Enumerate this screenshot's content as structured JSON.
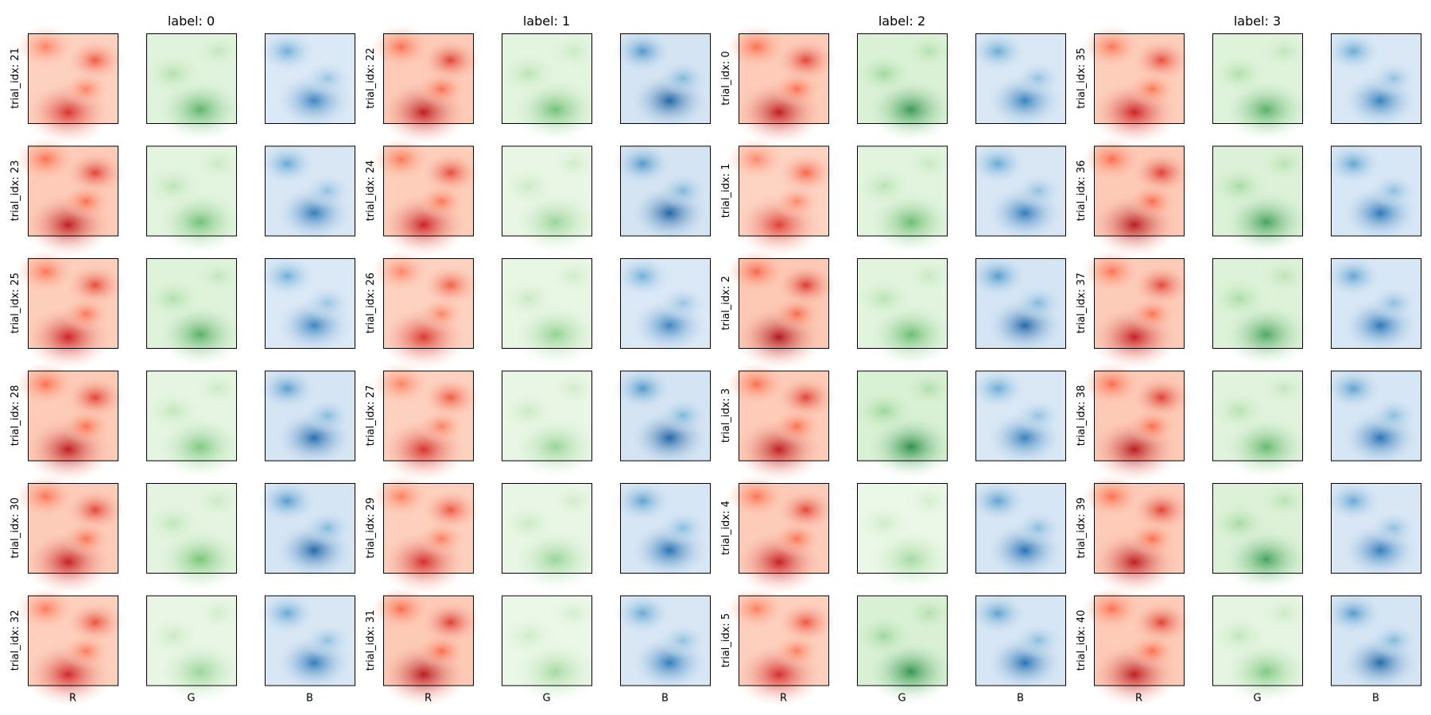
{
  "chart_data": {
    "type": "heatmap",
    "title": "",
    "layout": "grid of heatmap panels grouped by label; each row shows the R, G and B channels of one trial",
    "axes_ticks": "none",
    "channels": [
      "R",
      "G",
      "B"
    ],
    "colormaps": {
      "R": "Reds",
      "G": "Greens",
      "B": "Blues"
    },
    "xlabels": [
      "R",
      "G",
      "B"
    ],
    "groups": [
      {
        "label": "label: 0",
        "trials": [
          {
            "ylabel": "trial_idx: 21",
            "R": 0.62,
            "G": 0.48,
            "B": 0.58
          },
          {
            "ylabel": "trial_idx: 23",
            "R": 0.72,
            "G": 0.42,
            "B": 0.62
          },
          {
            "ylabel": "trial_idx: 25",
            "R": 0.68,
            "G": 0.5,
            "B": 0.58
          },
          {
            "ylabel": "trial_idx: 28",
            "R": 0.72,
            "G": 0.38,
            "B": 0.68
          },
          {
            "ylabel": "trial_idx: 30",
            "R": 0.7,
            "G": 0.4,
            "B": 0.7
          },
          {
            "ylabel": "trial_idx: 32",
            "R": 0.66,
            "G": 0.3,
            "B": 0.62
          }
        ]
      },
      {
        "label": "label: 1",
        "trials": [
          {
            "ylabel": "trial_idx: 22",
            "R": 0.72,
            "G": 0.42,
            "B": 0.72
          },
          {
            "ylabel": "trial_idx: 24",
            "R": 0.68,
            "G": 0.3,
            "B": 0.72
          },
          {
            "ylabel": "trial_idx: 26",
            "R": 0.6,
            "G": 0.32,
            "B": 0.58
          },
          {
            "ylabel": "trial_idx: 27",
            "R": 0.62,
            "G": 0.3,
            "B": 0.72
          },
          {
            "ylabel": "trial_idx: 29",
            "R": 0.64,
            "G": 0.3,
            "B": 0.66
          },
          {
            "ylabel": "trial_idx: 31",
            "R": 0.74,
            "G": 0.26,
            "B": 0.62
          }
        ]
      },
      {
        "label": "label: 2",
        "trials": [
          {
            "ylabel": "trial_idx: 0",
            "R": 0.72,
            "G": 0.6,
            "B": 0.6
          },
          {
            "ylabel": "trial_idx: 1",
            "R": 0.58,
            "G": 0.44,
            "B": 0.62
          },
          {
            "ylabel": "trial_idx: 2",
            "R": 0.76,
            "G": 0.44,
            "B": 0.7
          },
          {
            "ylabel": "trial_idx: 3",
            "R": 0.72,
            "G": 0.64,
            "B": 0.6
          },
          {
            "ylabel": "trial_idx: 4",
            "R": 0.7,
            "G": 0.26,
            "B": 0.66
          },
          {
            "ylabel": "trial_idx: 5",
            "R": 0.64,
            "G": 0.62,
            "B": 0.66
          }
        ]
      },
      {
        "label": "label: 3",
        "trials": [
          {
            "ylabel": "trial_idx: 35",
            "R": 0.68,
            "G": 0.5,
            "B": 0.6
          },
          {
            "ylabel": "trial_idx: 36",
            "R": 0.74,
            "G": 0.56,
            "B": 0.64
          },
          {
            "ylabel": "trial_idx: 37",
            "R": 0.7,
            "G": 0.54,
            "B": 0.64
          },
          {
            "ylabel": "trial_idx: 38",
            "R": 0.74,
            "G": 0.46,
            "B": 0.66
          },
          {
            "ylabel": "trial_idx: 39",
            "R": 0.72,
            "G": 0.56,
            "B": 0.62
          },
          {
            "ylabel": "trial_idx: 40",
            "R": 0.72,
            "G": 0.38,
            "B": 0.7
          }
        ]
      }
    ]
  }
}
